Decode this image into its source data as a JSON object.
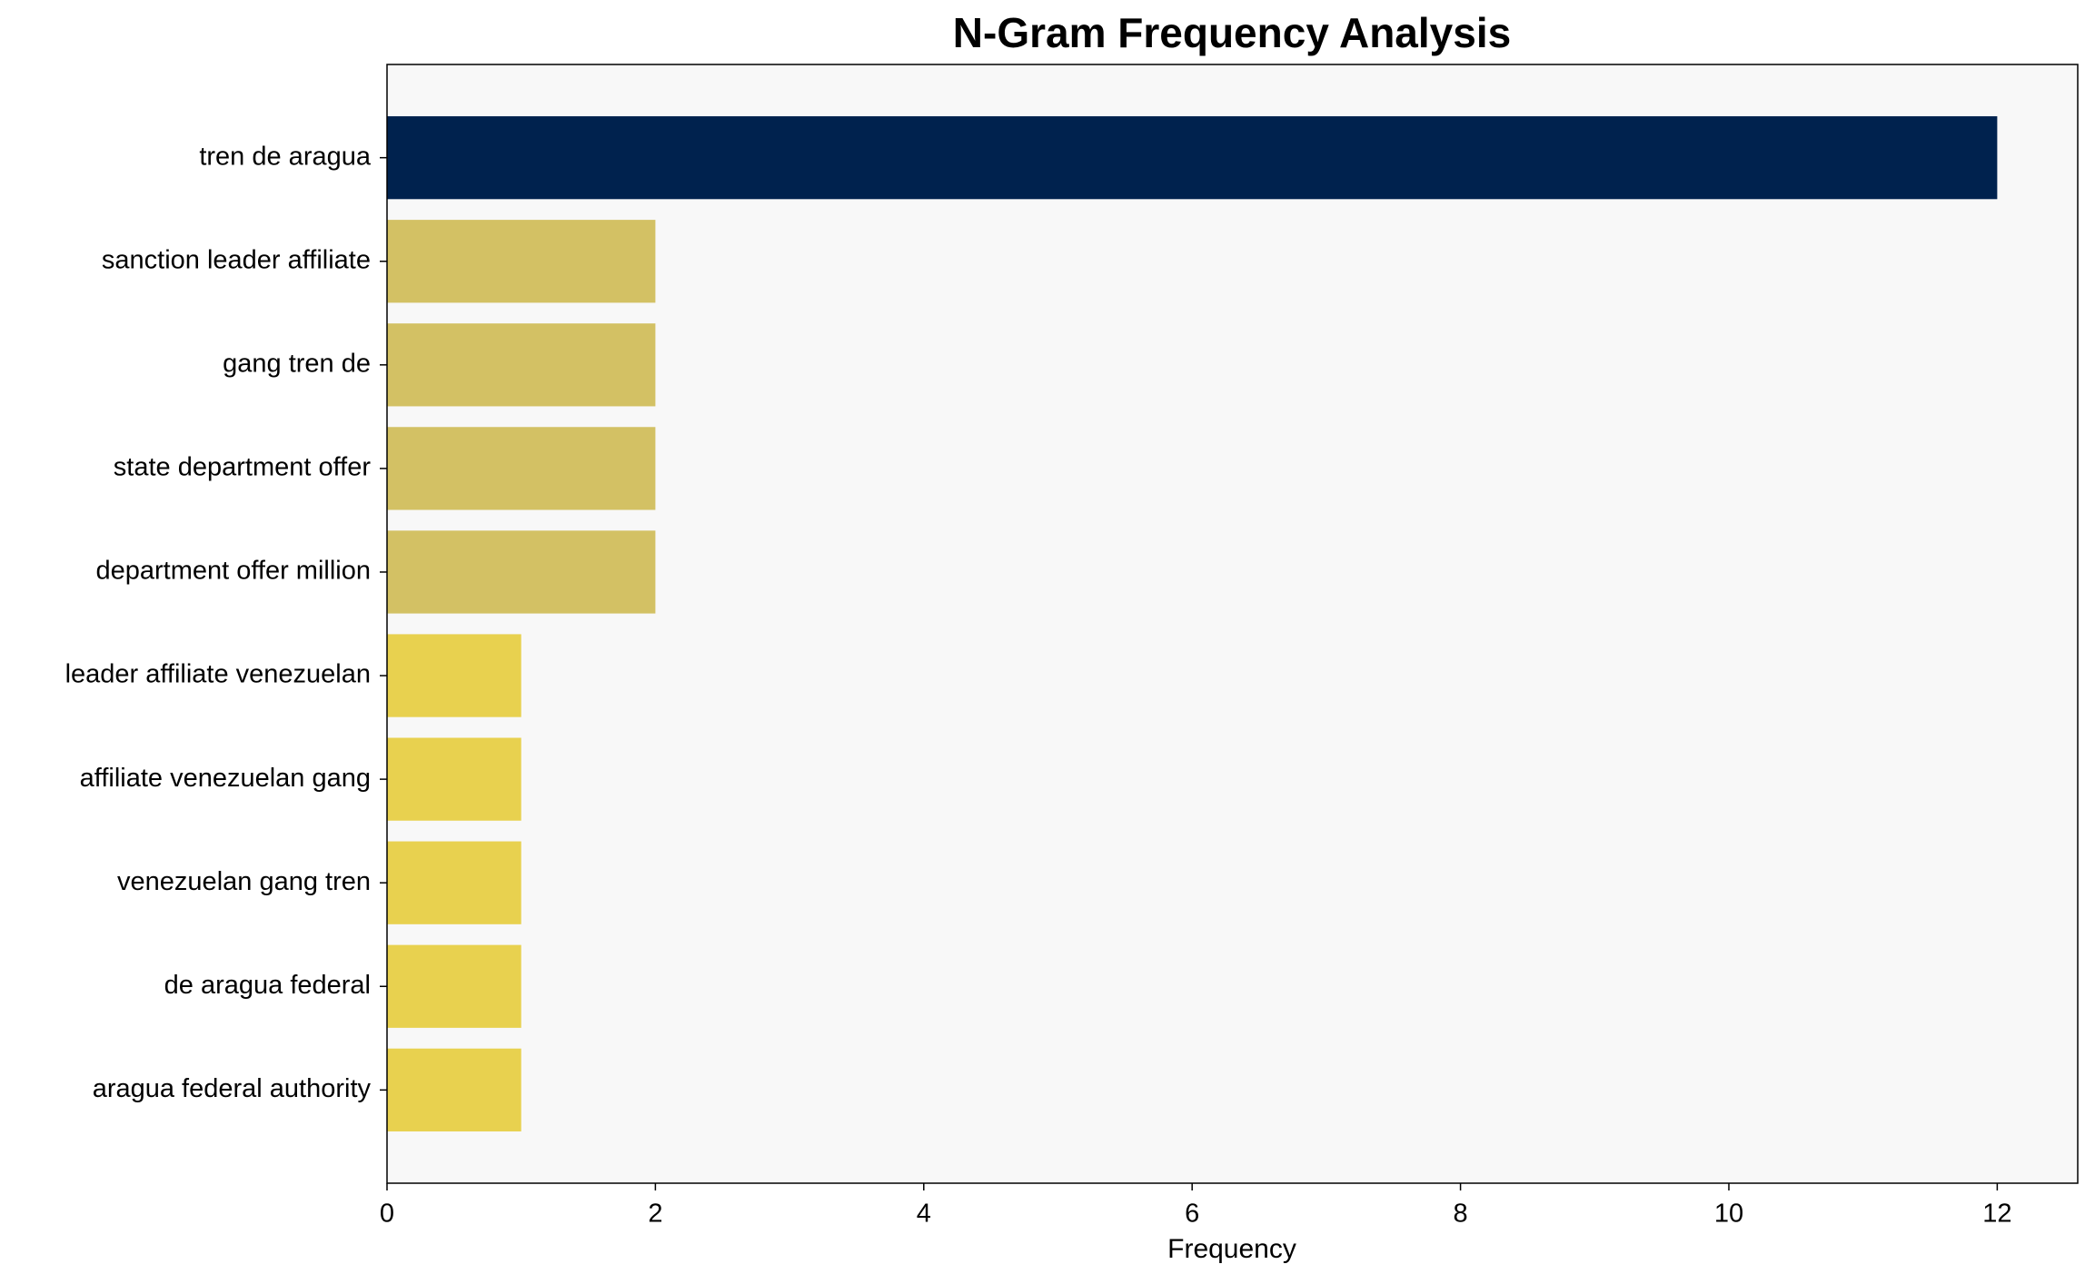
{
  "chart_data": {
    "type": "barh",
    "title": "N-Gram Frequency Analysis",
    "x_label": "Frequency",
    "categories": [
      "tren de aragua",
      "sanction leader affiliate",
      "gang tren de",
      "state department offer",
      "department offer million",
      "leader affiliate venezuelan",
      "affiliate venezuelan gang",
      "venezuelan gang tren",
      "de aragua federal",
      "aragua federal authority"
    ],
    "values": [
      12,
      2,
      2,
      2,
      2,
      1,
      1,
      1,
      1,
      1
    ],
    "colors": [
      "#00224e",
      "#d3c164",
      "#d3c164",
      "#d3c164",
      "#d3c164",
      "#e8d14f",
      "#e8d14f",
      "#e8d14f",
      "#e8d14f",
      "#e8d14f"
    ],
    "xlim": [
      0,
      12.6
    ],
    "xticks": [
      0,
      2,
      4,
      6,
      8,
      10,
      12
    ]
  }
}
